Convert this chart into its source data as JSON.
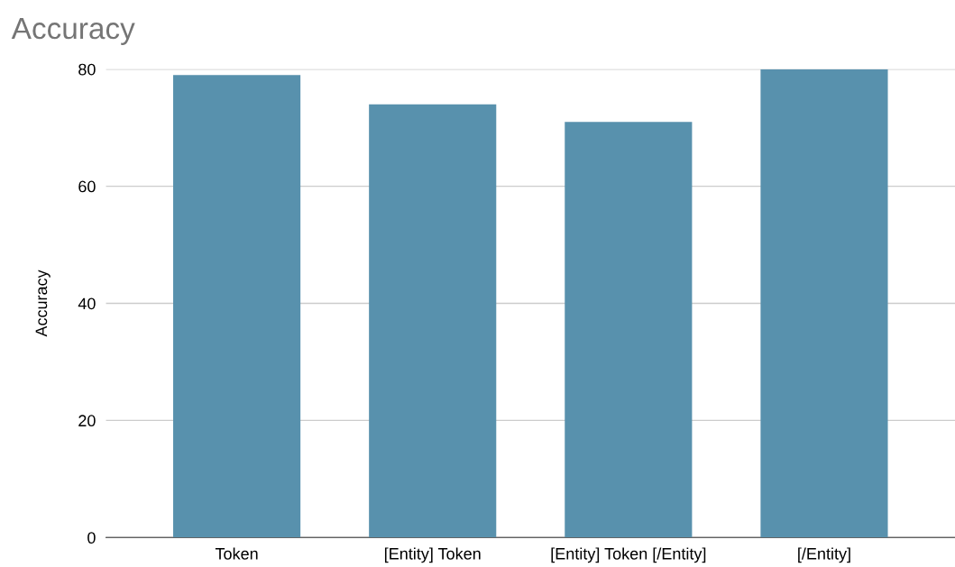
{
  "chart_data": {
    "type": "bar",
    "title": "Accuracy",
    "ylabel": "Accuracy",
    "categories": [
      "Token",
      "[Entity] Token",
      "[Entity] Token [/Entity]",
      "[/Entity]"
    ],
    "values": [
      79,
      74,
      71,
      80
    ],
    "color": "#5891ad",
    "ylim": [
      0,
      80
    ],
    "yticks": [
      0,
      20,
      40,
      60,
      80
    ],
    "grid": "y",
    "legend": false
  }
}
